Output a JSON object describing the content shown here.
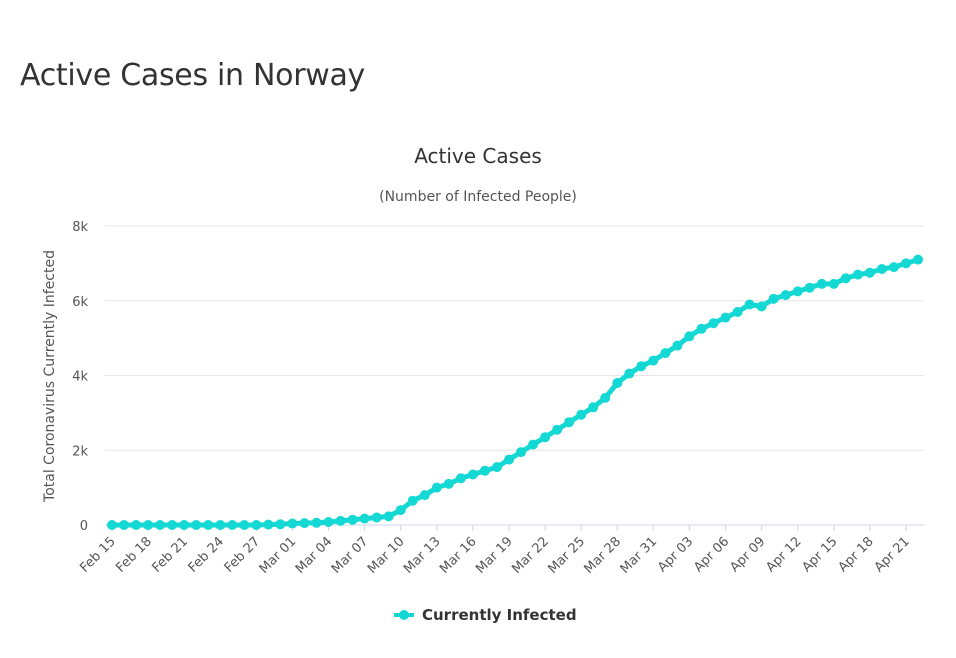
{
  "page": {
    "title": "Active Cases in Norway"
  },
  "legend_color": "#14d8d4",
  "chart_data": {
    "type": "line",
    "title": "Active Cases",
    "subtitle": "(Number of Infected People)",
    "ylabel": "Total Coronavirus Currently Infected",
    "xlabel": "",
    "ylim": [
      0,
      8000
    ],
    "yticks": [
      0,
      2000,
      4000,
      6000,
      8000
    ],
    "ytick_labels": [
      "0",
      "2k",
      "4k",
      "6k",
      "8k"
    ],
    "grid": true,
    "legend_position": "bottom",
    "x_tick_labels": [
      "Feb 15",
      "Feb 18",
      "Feb 21",
      "Feb 24",
      "Feb 27",
      "Mar 01",
      "Mar 04",
      "Mar 07",
      "Mar 10",
      "Mar 13",
      "Mar 16",
      "Mar 19",
      "Mar 22",
      "Mar 25",
      "Mar 28",
      "Mar 31",
      "Apr 03",
      "Apr 06",
      "Apr 09",
      "Apr 12",
      "Apr 15",
      "Apr 18",
      "Apr 21"
    ],
    "x": [
      "Feb 15",
      "Feb 16",
      "Feb 17",
      "Feb 18",
      "Feb 19",
      "Feb 20",
      "Feb 21",
      "Feb 22",
      "Feb 23",
      "Feb 24",
      "Feb 25",
      "Feb 26",
      "Feb 27",
      "Feb 28",
      "Feb 29",
      "Mar 01",
      "Mar 02",
      "Mar 03",
      "Mar 04",
      "Mar 05",
      "Mar 06",
      "Mar 07",
      "Mar 08",
      "Mar 09",
      "Mar 10",
      "Mar 11",
      "Mar 12",
      "Mar 13",
      "Mar 14",
      "Mar 15",
      "Mar 16",
      "Mar 17",
      "Mar 18",
      "Mar 19",
      "Mar 20",
      "Mar 21",
      "Mar 22",
      "Mar 23",
      "Mar 24",
      "Mar 25",
      "Mar 26",
      "Mar 27",
      "Mar 28",
      "Mar 29",
      "Mar 30",
      "Mar 31",
      "Apr 01",
      "Apr 02",
      "Apr 03",
      "Apr 04",
      "Apr 05",
      "Apr 06",
      "Apr 07",
      "Apr 08",
      "Apr 09",
      "Apr 10",
      "Apr 11",
      "Apr 12",
      "Apr 13",
      "Apr 14",
      "Apr 15",
      "Apr 16",
      "Apr 17",
      "Apr 18",
      "Apr 19",
      "Apr 20",
      "Apr 21",
      "Apr 22"
    ],
    "series": [
      {
        "name": "Currently Infected",
        "color": "#14d8d4",
        "values": [
          0,
          0,
          0,
          0,
          0,
          0,
          0,
          0,
          0,
          0,
          0,
          0,
          0,
          10,
          20,
          40,
          50,
          60,
          80,
          110,
          140,
          170,
          200,
          230,
          400,
          650,
          800,
          1000,
          1100,
          1250,
          1350,
          1450,
          1550,
          1750,
          1950,
          2150,
          2350,
          2550,
          2750,
          2950,
          3150,
          3400,
          3800,
          4050,
          4250,
          4400,
          4600,
          4800,
          5050,
          5250,
          5400,
          5550,
          5700,
          5900,
          5850,
          6050,
          6150,
          6250,
          6350,
          6450,
          6450,
          6600,
          6700,
          6750,
          6850,
          6900,
          7000,
          7100
        ]
      }
    ]
  }
}
